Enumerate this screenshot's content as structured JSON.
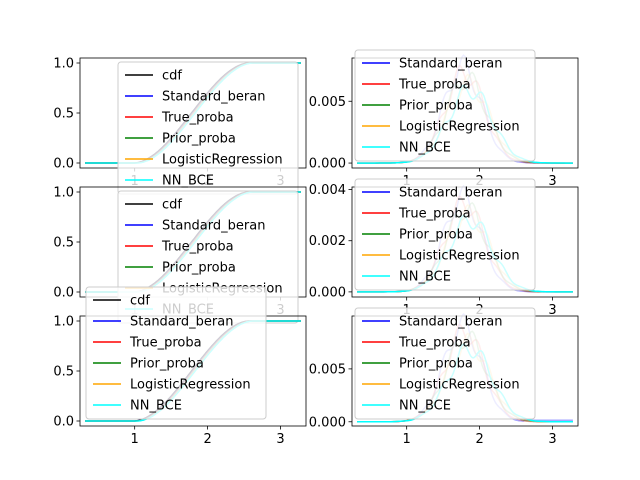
{
  "chart_data": [
    {
      "type": "line",
      "panel": "top-left",
      "xlim": [
        0.25,
        3.35
      ],
      "ylim": [
        -0.05,
        1.05
      ],
      "xticks": [
        1,
        2,
        3
      ],
      "yticks": [
        0.0,
        0.5,
        1.0
      ],
      "ytick_labels": [
        "0.0",
        "0.5",
        "1.0"
      ],
      "grid": false,
      "legend": {
        "placement": "center",
        "entries": [
          "cdf",
          "Standard_beran",
          "True_proba",
          "Prior_proba",
          "LogisticRegression",
          "NN_BCE"
        ]
      },
      "curve": "cdf"
    },
    {
      "type": "line",
      "panel": "top-right",
      "xlim": [
        0.25,
        3.35
      ],
      "ylim": [
        -0.0004,
        0.0085
      ],
      "xticks": [
        1,
        2,
        3
      ],
      "yticks": [
        0.0,
        0.005
      ],
      "ytick_labels": [
        "0.000",
        "0.005"
      ],
      "grid": false,
      "legend": {
        "placement": "upper-center",
        "entries": [
          "Standard_beran",
          "True_proba",
          "Prior_proba",
          "LogisticRegression",
          "NN_BCE"
        ]
      },
      "curve": "density",
      "peak": 0.0078
    },
    {
      "type": "line",
      "panel": "middle-left",
      "xlim": [
        0.25,
        3.35
      ],
      "ylim": [
        -0.05,
        1.05
      ],
      "xticks": [
        1,
        2,
        3
      ],
      "yticks": [
        0.0,
        0.5,
        1.0
      ],
      "ytick_labels": [
        "0.0",
        "0.5",
        "1.0"
      ],
      "grid": false,
      "legend": {
        "placement": "center",
        "entries": [
          "cdf",
          "Standard_beran",
          "True_proba",
          "Prior_proba",
          "LogisticRegression",
          "NN_BCE"
        ]
      },
      "curve": "cdf"
    },
    {
      "type": "line",
      "panel": "middle-right",
      "xlim": [
        0.25,
        3.35
      ],
      "ylim": [
        -0.0002,
        0.0041
      ],
      "xticks": [
        1,
        2,
        3
      ],
      "yticks": [
        0.0,
        0.002,
        0.004
      ],
      "ytick_labels": [
        "0.000",
        "0.002",
        "0.004"
      ],
      "grid": false,
      "legend": {
        "placement": "upper-center",
        "entries": [
          "Standard_beran",
          "True_proba",
          "Prior_proba",
          "LogisticRegression",
          "NN_BCE"
        ]
      },
      "curve": "density",
      "peak": 0.0037
    },
    {
      "type": "line",
      "panel": "bottom-left",
      "xlim": [
        0.25,
        3.35
      ],
      "ylim": [
        -0.05,
        1.05
      ],
      "xticks": [
        1,
        2,
        3
      ],
      "yticks": [
        0.0,
        0.5,
        1.0
      ],
      "ytick_labels": [
        "0.0",
        "0.5",
        "1.0"
      ],
      "grid": false,
      "legend": {
        "placement": "upper-left",
        "entries": [
          "cdf",
          "Standard_beran",
          "True_proba",
          "Prior_proba",
          "LogisticRegression",
          "NN_BCE"
        ]
      },
      "curve": "cdf"
    },
    {
      "type": "line",
      "panel": "bottom-right",
      "xlim": [
        0.25,
        3.35
      ],
      "ylim": [
        -0.0004,
        0.01
      ],
      "xticks": [
        1,
        2,
        3
      ],
      "yticks": [
        0.0,
        0.005
      ],
      "ytick_labels": [
        "0.000",
        "0.005"
      ],
      "grid": false,
      "legend": {
        "placement": "upper-center",
        "entries": [
          "Standard_beran",
          "True_proba",
          "Prior_proba",
          "LogisticRegression",
          "NN_BCE"
        ]
      },
      "curve": "density",
      "peak": 0.0091
    }
  ],
  "series_colors": {
    "cdf": "#000000",
    "Standard_beran": "#0000ff",
    "True_proba": "#ff0000",
    "Prior_proba": "#008000",
    "LogisticRegression": "#ffa500",
    "NN_BCE": "#00ffff"
  }
}
